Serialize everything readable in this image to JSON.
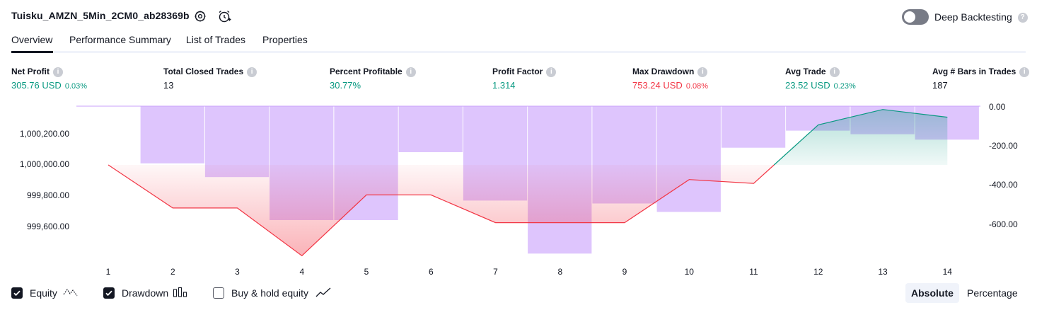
{
  "header": {
    "strategy_name": "Tuisku_AMZN_5Min_2CM0_ab28369b",
    "settings_icon": "gear-icon",
    "add_alert_icon": "alarm-clock-plus-icon",
    "deep_backtesting_label": "Deep Backtesting",
    "deep_backtesting_enabled": false
  },
  "tabs": [
    "Overview",
    "Performance Summary",
    "List of Trades",
    "Properties"
  ],
  "active_tab": "Overview",
  "metrics": [
    {
      "label": "Net Profit",
      "value": "305.76 USD",
      "pct": "0.03%",
      "color": "#089981"
    },
    {
      "label": "Total Closed Trades",
      "value": "13",
      "pct": "",
      "color": "#131722"
    },
    {
      "label": "Percent Profitable",
      "value": "30.77%",
      "pct": "",
      "color": "#089981"
    },
    {
      "label": "Profit Factor",
      "value": "1.314",
      "pct": "",
      "color": "#089981"
    },
    {
      "label": "Max Drawdown",
      "value": "753.24 USD",
      "pct": "0.08%",
      "color": "#f23645"
    },
    {
      "label": "Avg Trade",
      "value": "23.52 USD",
      "pct": "0.23%",
      "color": "#089981"
    },
    {
      "label": "Avg # Bars in Trades",
      "value": "187",
      "pct": "",
      "color": "#131722"
    }
  ],
  "chart_data": {
    "type": "bar",
    "x": [
      1,
      2,
      3,
      4,
      5,
      6,
      7,
      8,
      9,
      10,
      11,
      12,
      13,
      14
    ],
    "left_axis_ticks": [
      "1,000,200.00",
      "1,000,000.00",
      "999,800.00",
      "999,600.00"
    ],
    "right_axis_ticks": [
      "0.00",
      "-200.00",
      "-400.00",
      "-600.00"
    ],
    "equity": [
      1000000,
      999720,
      999720,
      999410,
      999805,
      999805,
      999625,
      999625,
      999625,
      999905,
      999880,
      1000260,
      1000360,
      1000310
    ],
    "drawdown": [
      0,
      -292,
      -362,
      -582,
      -582,
      -235,
      -482,
      -753,
      -497,
      -540,
      -212,
      -125,
      -143,
      -171
    ],
    "buy_hold_equity": [],
    "colors": {
      "equity_up": "#089981",
      "equity_down": "#f23645",
      "drawdown": "#c9a2fb"
    }
  },
  "legend": [
    {
      "label": "Equity",
      "checked": true,
      "icon": "equity-line-icon"
    },
    {
      "label": "Drawdown",
      "checked": true,
      "icon": "bars-icon"
    },
    {
      "label": "Buy & hold equity",
      "checked": false,
      "icon": "trend-line-icon"
    }
  ],
  "scale_modes": [
    "Absolute",
    "Percentage"
  ],
  "active_scale_mode": "Absolute"
}
